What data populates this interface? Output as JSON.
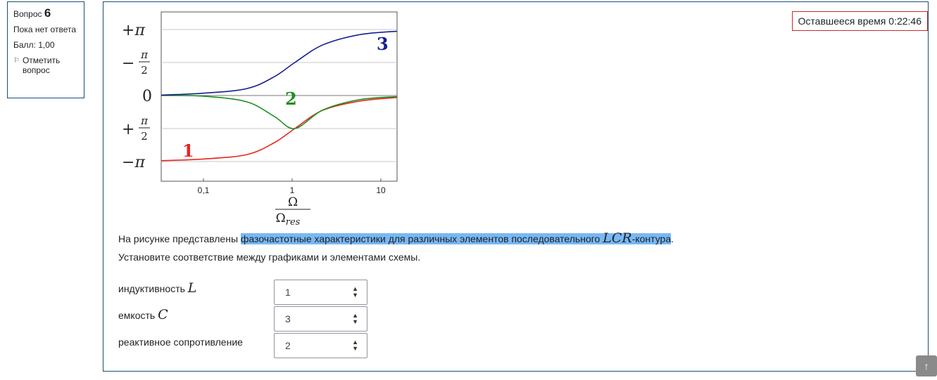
{
  "sidebar": {
    "question_label": "Вопрос",
    "question_number": "6",
    "status": "Пока нет ответа",
    "score": "Балл: 1,00",
    "flag_label": "Отметить вопрос"
  },
  "timer": {
    "text": "Оставшееся время 0:22:46"
  },
  "chart_data": {
    "type": "line",
    "x_scale": "log",
    "xlim": [
      0.035,
      13
    ],
    "ylim": [
      "-π",
      "+π"
    ],
    "x_tick_labels": [
      "0,1",
      "1",
      "10"
    ],
    "y_tick_labels": [
      "+π",
      "−π/2",
      "0",
      "+π/2",
      "−π"
    ],
    "xlabel_num": "Ω",
    "xlabel_den": "Ω",
    "xlabel_den_sub": "res",
    "series": [
      {
        "name": "1",
        "color": "#e8261e",
        "x": [
          0.035,
          0.1,
          0.3,
          0.6,
          1,
          2,
          5,
          13
        ],
        "y": [
          -3.1,
          -3.02,
          -2.81,
          -2.24,
          -1.57,
          -0.71,
          -0.27,
          -0.09
        ]
      },
      {
        "name": "2",
        "color": "#1e8f1e",
        "x": [
          0.035,
          0.1,
          0.3,
          0.6,
          1,
          2,
          5,
          13
        ],
        "y": [
          0.0,
          -0.03,
          -0.3,
          -1.0,
          -1.57,
          -0.7,
          -0.2,
          -0.05
        ]
      },
      {
        "name": "3",
        "color": "#14208f",
        "x": [
          0.035,
          0.1,
          0.3,
          0.6,
          1,
          2,
          5,
          13
        ],
        "y": [
          0.02,
          0.11,
          0.33,
          0.9,
          1.57,
          2.4,
          2.89,
          3.06
        ]
      }
    ]
  },
  "question": {
    "text_before": "На рисунке представлены ",
    "text_highlight": "фазочастотные характеристики для различных элементов последовательного ",
    "math_lcr": "LCR",
    "text_highlight_after": "-контура",
    "text_end": ".",
    "line2": "Установите соответствие между графиками и элементами схемы."
  },
  "matches": [
    {
      "label": "индуктивность ",
      "math": "L",
      "value": "1"
    },
    {
      "label": "емкость ",
      "math": "C",
      "value": "3"
    },
    {
      "label": "реактивное сопротивление",
      "math": "",
      "value": "2"
    }
  ],
  "scroll_top_icon": "arrow-up-icon"
}
